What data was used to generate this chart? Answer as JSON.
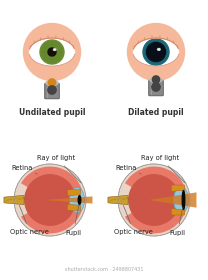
{
  "bg_color": "#ffffff",
  "skin_color": "#f5b89a",
  "skin_shadow": "#d4886a",
  "undilated_iris_color": "#6a8c30",
  "undilated_pupil_color": "#111108",
  "dilated_iris_color": "#1a6878",
  "dilated_pupil_color": "#080f18",
  "cylinder_body": "#888888",
  "cylinder_dark": "#555555",
  "cylinder_light": "#aaaaaa",
  "cylinder_lens": "#444444",
  "cylinder_top_color": "#bbbbbb",
  "cylinder_orange": "#d4861a",
  "light_cone": "#f5c030",
  "light_cone_alpha": 0.5,
  "label_undilated": "Undilated pupil",
  "label_dilated": "Dilated pupil",
  "sclera_color": "#e8d5c8",
  "retina_pink": "#e87868",
  "retina_dark": "#cc5548",
  "retina_inner": "#b84030",
  "cornea_blue": "#90c8e0",
  "cornea_edge": "#5aa0c0",
  "iris_orange": "#d4901a",
  "iris_orange_dark": "#a86010",
  "nerve_gold": "#c8a030",
  "nerve_dark": "#906010",
  "ray_orange": "#d07820",
  "label_retina": "Retina",
  "label_ray": "Ray of light",
  "label_optic": "Optic nerve",
  "label_pupil": "Pupil",
  "font_size_label": 4.8,
  "font_size_title": 5.5,
  "watermark": "shutterstock.com · 2498807431"
}
